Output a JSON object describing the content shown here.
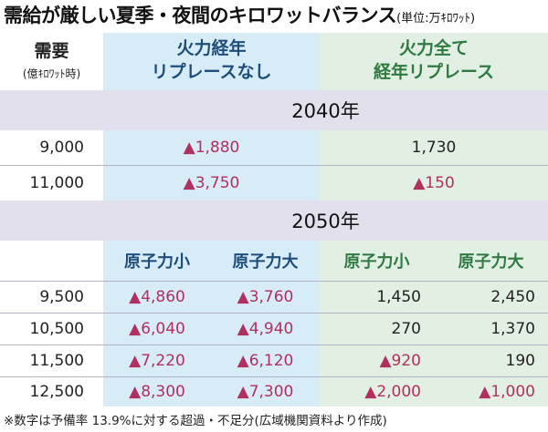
{
  "title": {
    "main": "需給が厳しい夏季・夜間のキロワットバランス",
    "unit": "(単位:万ｷﾛﾜｯﾄ)"
  },
  "header": {
    "demand_label": "需要",
    "demand_unit": "(億ｷﾛﾜｯﾄ時)",
    "scenario_1_line1": "火力経年",
    "scenario_1_line2": "リプレースなし",
    "scenario_2_line1": "火力全て",
    "scenario_2_line2": "経年リプレース"
  },
  "section_2040": {
    "year": "2040年",
    "rows": [
      {
        "demand": "9,000",
        "no_replace": "▲1,880",
        "all_replace": "1,730"
      },
      {
        "demand": "11,000",
        "no_replace": "▲3,750",
        "all_replace": "▲150"
      }
    ]
  },
  "section_2050": {
    "year": "2050年",
    "subheaders": [
      "原子力小",
      "原子力大",
      "原子力小",
      "原子力大"
    ],
    "rows": [
      {
        "demand": "9,500",
        "values": [
          "▲4,860",
          "▲3,760",
          "1,450",
          "2,450"
        ]
      },
      {
        "demand": "10,500",
        "values": [
          "▲6,040",
          "▲4,940",
          "270",
          "1,370"
        ]
      },
      {
        "demand": "11,500",
        "values": [
          "▲7,220",
          "▲6,120",
          "▲920",
          "190"
        ]
      },
      {
        "demand": "12,500",
        "values": [
          "▲8,300",
          "▲7,300",
          "▲2,000",
          "▲1,000"
        ]
      }
    ]
  },
  "footnote": "※数字は予備率 13.9%に対する超過・不足分(広域機関資料より作成)",
  "colors": {
    "blue_column_bg": "#d8ecf7",
    "green_column_bg": "#e2efe3",
    "band_bg": "#e3e0ee",
    "negative_text": "#b03060",
    "blue_text": "#1d4d7a",
    "green_text": "#2f7a41"
  }
}
